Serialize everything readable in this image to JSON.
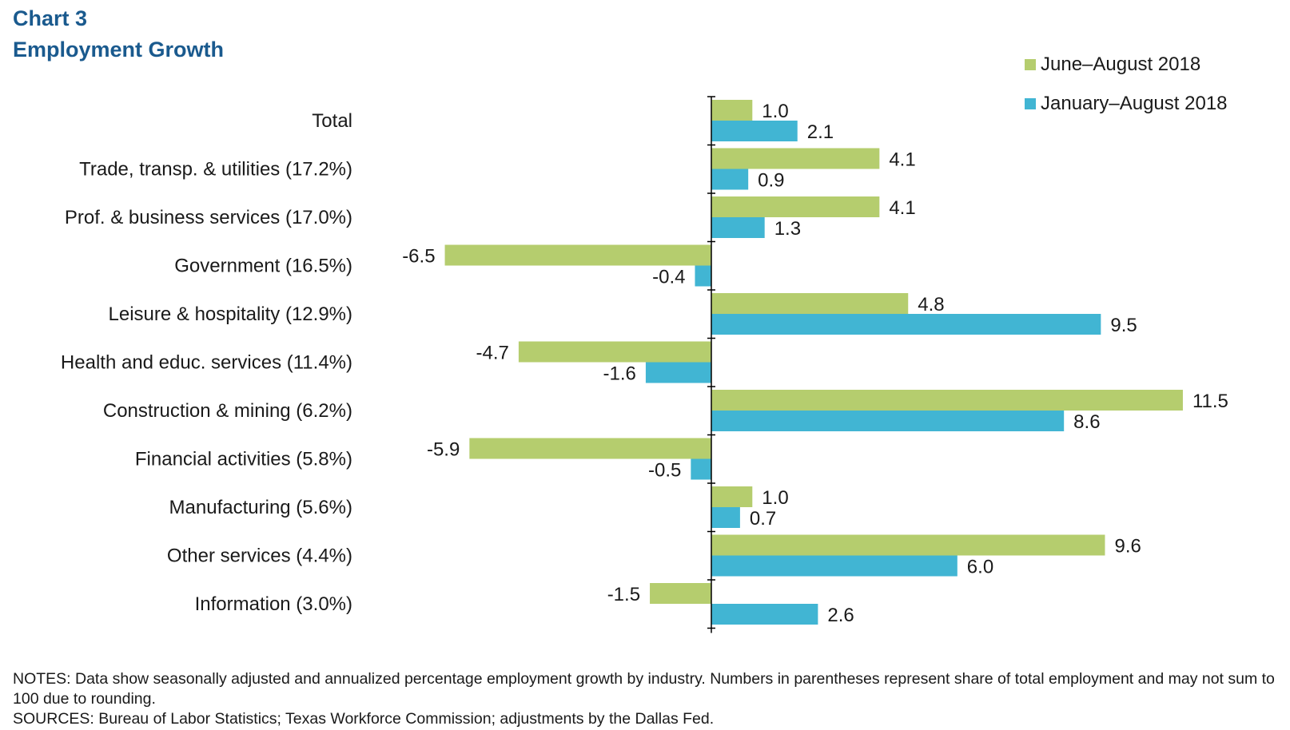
{
  "title_line1": "Chart 3",
  "title_line2": "Employment  Growth",
  "chart_data": {
    "type": "bar",
    "orientation": "horizontal",
    "title": "Employment Growth",
    "categories": [
      "Total",
      "Trade, transp. & utilities (17.2%)",
      "Prof. & business services (17.0%)",
      "Government (16.5%)",
      "Leisure & hospitality (12.9%)",
      "Health and educ. services (11.4%)",
      "Construction & mining (6.2%)",
      "Financial activities (5.8%)",
      "Manufacturing (5.6%)",
      "Other services (4.4%)",
      "Information (3.0%)"
    ],
    "series": [
      {
        "name": "June–August 2018",
        "color": "#b5cd6e",
        "values": [
          1.0,
          4.1,
          4.1,
          -6.5,
          4.8,
          -4.7,
          11.5,
          -5.9,
          1.0,
          9.6,
          -1.5
        ],
        "labels": [
          "1.0",
          "4.1",
          "4.1",
          "-6.5",
          "4.8",
          "-4.7",
          "11.5",
          "-5.9",
          "1.0",
          "9.6",
          "-1.5"
        ]
      },
      {
        "name": "January–August 2018",
        "color": "#41b5d3",
        "values": [
          2.1,
          0.9,
          1.3,
          -0.4,
          9.5,
          -1.6,
          8.6,
          -0.5,
          0.7,
          6.0,
          2.6
        ],
        "labels": [
          "2.1",
          "0.9",
          "1.3",
          "-0.4",
          "9.5",
          "-1.6",
          "8.6",
          "-0.5",
          "0.7",
          "6.0",
          "2.6"
        ]
      }
    ],
    "xlim": [
      -6.5,
      11.5
    ],
    "grid": false,
    "legend": "top-right"
  },
  "notes_line1": "NOTES: Data show seasonally adjusted and annualized percentage employment growth by industry. Numbers in parentheses represent share of total employment and may not sum to 100 due to rounding.",
  "notes_line2": "SOURCES: Bureau of Labor Statistics; Texas Workforce Commission; adjustments by the Dallas Fed."
}
